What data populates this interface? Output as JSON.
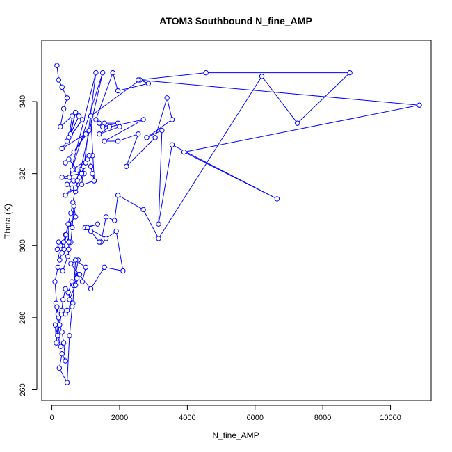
{
  "chart_data": {
    "type": "line",
    "title": "ATOM3 Southbound N_fine_AMP",
    "xlabel": "N_fine_AMP",
    "ylabel": "Theta (K)",
    "xlim": [
      -300,
      11200
    ],
    "ylim": [
      257,
      357
    ],
    "xticks": [
      0,
      2000,
      4000,
      6000,
      8000,
      10000
    ],
    "yticks": [
      260,
      280,
      300,
      320,
      340
    ],
    "xtick_labels": [
      "0",
      "2000",
      "4000",
      "6000",
      "8000",
      "10000"
    ],
    "ytick_labels": [
      "260",
      "280",
      "300",
      "320",
      "340"
    ],
    "grid": false,
    "legend": "none",
    "series": [
      {
        "color": "#0000FF",
        "marker": "open-circle",
        "x": [
          150,
          200,
          300,
          450,
          350,
          250,
          600,
          500,
          700,
          550,
          800,
          450,
          900,
          300,
          1000,
          650,
          1100,
          400,
          500,
          750,
          1200,
          600,
          850,
          300,
          650,
          950,
          450,
          700,
          1500,
          520,
          1300,
          880,
          400,
          600,
          1250,
          1150,
          2600,
          2850,
          1950,
          1800,
          1300,
          1400,
          1550,
          1950,
          1500,
          2000,
          1400,
          1700,
          2700,
          1550,
          1950,
          2550,
          2200,
          3050,
          3400,
          3550,
          2800,
          3250,
          3150,
          3550,
          6650,
          3900,
          10850,
          2550,
          4550,
          8800,
          7250,
          6200,
          3150,
          2700,
          1950,
          1850,
          1600,
          1450,
          1400,
          1150,
          980,
          1350,
          1050,
          1600,
          1900,
          2100,
          1550,
          1150,
          800,
          560,
          780,
          640,
          740,
          900,
          1000,
          700,
          620,
          480,
          590,
          700,
          820,
          520,
          580,
          450,
          400,
          300,
          200,
          130,
          100,
          170,
          260,
          120,
          180,
          230,
          300,
          350,
          400,
          300,
          220,
          450,
          520,
          600,
          480,
          400,
          330,
          280,
          230,
          150,
          90,
          180,
          320,
          470,
          560,
          600,
          650,
          700,
          500,
          400,
          350,
          300,
          250,
          200,
          160,
          230,
          300,
          360,
          420,
          500,
          500,
          480,
          560,
          620,
          700,
          750,
          820,
          880,
          940,
          1000,
          1050,
          1100,
          1150,
          1200,
          1250
        ],
        "y": [
          350,
          346,
          344,
          341,
          338,
          333,
          336,
          330,
          337,
          331,
          336,
          329,
          335,
          327,
          331,
          326,
          332,
          323,
          324,
          321,
          325,
          321,
          320,
          319,
          318,
          320,
          317,
          315,
          348,
          319,
          348,
          317,
          314,
          316,
          318,
          336,
          346,
          345,
          343,
          348,
          335,
          334,
          334,
          334,
          333,
          333,
          331,
          333,
          335,
          329,
          329,
          331,
          322,
          330,
          341,
          335,
          330,
          332,
          306,
          328,
          313,
          326,
          339,
          346,
          348,
          348,
          334,
          347,
          302,
          310,
          314,
          307,
          308,
          301,
          301,
          304,
          305,
          306,
          305,
          302,
          304,
          293,
          294,
          288,
          292,
          295,
          296,
          289,
          291,
          290,
          294,
          296,
          284,
          287,
          290,
          289,
          292,
          285,
          283,
          282,
          281,
          282,
          280,
          273,
          278,
          275,
          272,
          284,
          281,
          278,
          276,
          273,
          268,
          270,
          266,
          262,
          275,
          283,
          287,
          288,
          285,
          281,
          278,
          283,
          290,
          294,
          293,
          297,
          301,
          305,
          311,
          308,
          306,
          303,
          301,
          299,
          300,
          301,
          299,
          296,
          298,
          299,
          303,
          301,
          299,
          306,
          309,
          312,
          316,
          318,
          319,
          320,
          322,
          323,
          324,
          325,
          322,
          320,
          318
        ]
      }
    ]
  }
}
